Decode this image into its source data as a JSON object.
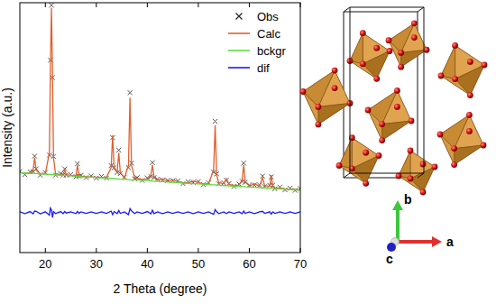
{
  "chart_data": {
    "type": "line",
    "xlabel": "2 Theta (degree)",
    "ylabel": "Intensity (a.u.)",
    "x": [
      15,
      16,
      17,
      17.6,
      17.9,
      18.2,
      19,
      20,
      20.8,
      21.0,
      21.2,
      21.4,
      21.6,
      22,
      23,
      23.5,
      23.8,
      24.1,
      25,
      26,
      26.3,
      26.6,
      27,
      28,
      29,
      30,
      31,
      32,
      32.9,
      33.2,
      33.5,
      34.1,
      34.4,
      34.7,
      35.5,
      36.3,
      36.6,
      36.9,
      37.5,
      38,
      39,
      40,
      40.7,
      41.0,
      41.3,
      42,
      43,
      44,
      45,
      46,
      47,
      48,
      49,
      50,
      51,
      52,
      53.0,
      53.3,
      53.6,
      54,
      55,
      55.5,
      56,
      57,
      58,
      58.6,
      58.9,
      59.2,
      60,
      61,
      62,
      62.6,
      63,
      64,
      64.3,
      64.6,
      65,
      66,
      67,
      68,
      69,
      70
    ],
    "series": [
      {
        "name": "Obs",
        "type": "scatter",
        "marker": "x",
        "color": "#555555",
        "values": [
          32.5,
          31.2,
          32.3,
          32.4,
          38.6,
          33.5,
          31.0,
          32.0,
          39.0,
          77.0,
          99.0,
          70.0,
          38.5,
          31.0,
          31.6,
          31.0,
          33.5,
          31.0,
          31.2,
          30.4,
          35.6,
          30.6,
          30.9,
          30.0,
          30.7,
          29.8,
          30.5,
          29.8,
          34.8,
          46.0,
          34.0,
          32.0,
          41.0,
          31.6,
          30.2,
          34.0,
          64.0,
          35.8,
          29.5,
          30.0,
          28.9,
          29.9,
          30.4,
          36.0,
          30.0,
          29.4,
          29.0,
          28.9,
          28.8,
          28.7,
          27.6,
          28.3,
          28.1,
          28.4,
          27.2,
          27.9,
          32.2,
          52.5,
          31.5,
          27.5,
          27.9,
          29.0,
          27.6,
          26.5,
          27.4,
          28.5,
          35.8,
          28.1,
          27.0,
          27.0,
          27.0,
          30.6,
          26.4,
          26.9,
          30.3,
          27.0,
          25.5,
          26.2,
          25.1,
          25.8,
          24.9,
          25.6
        ]
      },
      {
        "name": "Calc",
        "type": "line",
        "line_style": "solid",
        "color": "#e0602f",
        "values": [
          32.0,
          31.9,
          31.8,
          33.0,
          38.0,
          33.0,
          31.6,
          31.6,
          40.0,
          75.0,
          98.0,
          72.0,
          38.0,
          31.5,
          31.1,
          31.5,
          33.0,
          31.3,
          30.8,
          30.9,
          35.0,
          31.0,
          30.5,
          30.4,
          30.3,
          30.2,
          30.1,
          30.2,
          34.0,
          47.0,
          33.5,
          32.5,
          40.0,
          32.0,
          29.8,
          35.0,
          62.0,
          35.0,
          30.0,
          29.6,
          29.3,
          29.4,
          31.0,
          35.0,
          30.5,
          29.0,
          29.5,
          28.5,
          29.2,
          28.3,
          28.0,
          27.9,
          28.6,
          28.0,
          27.6,
          27.5,
          33.0,
          51.0,
          31.0,
          28.0,
          27.5,
          29.5,
          27.2,
          26.9,
          27.0,
          29.0,
          35.0,
          28.5,
          26.6,
          27.5,
          26.6,
          30.0,
          26.8,
          26.5,
          31.0,
          26.6,
          25.9,
          25.8,
          25.5,
          25.4,
          25.3,
          25.2
        ]
      },
      {
        "name": "bckgr",
        "type": "line",
        "line_style": "solid",
        "color": "#5fdc3c",
        "values": [
          32.0,
          31.9,
          31.7,
          31.7,
          31.6,
          31.6,
          31.5,
          31.4,
          31.3,
          31.2,
          31.2,
          31.2,
          31.1,
          31.1,
          31.0,
          30.9,
          30.9,
          30.8,
          30.7,
          30.6,
          30.5,
          30.5,
          30.4,
          30.3,
          30.2,
          30.0,
          29.9,
          29.8,
          29.7,
          29.6,
          29.6,
          29.5,
          29.5,
          29.4,
          29.3,
          29.2,
          29.2,
          29.1,
          29.1,
          29.0,
          28.9,
          28.8,
          28.7,
          28.6,
          28.6,
          28.5,
          28.4,
          28.2,
          28.1,
          28.0,
          27.8,
          27.7,
          27.6,
          27.5,
          27.4,
          27.2,
          27.1,
          27.1,
          27.0,
          27.0,
          26.8,
          26.8,
          26.7,
          26.6,
          26.5,
          26.4,
          26.4,
          26.3,
          26.2,
          26.1,
          26.0,
          25.9,
          25.9,
          25.7,
          25.7,
          25.6,
          25.6,
          25.5,
          25.3,
          25.2,
          25.1,
          25.0
        ]
      },
      {
        "name": "dif",
        "type": "line",
        "line_style": "solid",
        "color": "#1a1aff",
        "values": [
          16.3,
          15.6,
          16.4,
          15.5,
          16.6,
          16.5,
          15.5,
          16.3,
          15.0,
          17.8,
          17.0,
          14.0,
          16.4,
          15.6,
          16.4,
          15.6,
          16.4,
          15.8,
          16.3,
          15.6,
          16.5,
          15.7,
          16.3,
          15.7,
          16.3,
          15.7,
          16.3,
          15.7,
          16.6,
          15.2,
          16.4,
          15.6,
          16.8,
          15.7,
          16.3,
          15.2,
          17.6,
          16.7,
          15.6,
          16.3,
          15.7,
          16.4,
          15.5,
          16.9,
          15.6,
          16.3,
          15.6,
          16.3,
          15.7,
          16.3,
          15.7,
          16.3,
          15.6,
          16.3,
          15.7,
          16.3,
          15.3,
          17.2,
          16.4,
          15.6,
          16.3,
          15.6,
          16.3,
          15.7,
          16.3,
          15.6,
          16.6,
          15.7,
          16.3,
          15.6,
          16.3,
          16.5,
          15.7,
          16.3,
          15.4,
          16.3,
          15.7,
          16.3,
          15.7,
          16.3,
          15.7,
          16.3
        ]
      }
    ],
    "xlim": [
      15,
      70
    ],
    "xticks": [
      20,
      30,
      40,
      50,
      60,
      70
    ],
    "ylim": [
      0,
      100
    ],
    "yticks": [],
    "tick_labels": "x",
    "grid": false,
    "legend": "upper right"
  },
  "structure": {
    "axes": [
      {
        "label": "a"
      },
      {
        "label": "b"
      },
      {
        "label": "c"
      }
    ]
  }
}
